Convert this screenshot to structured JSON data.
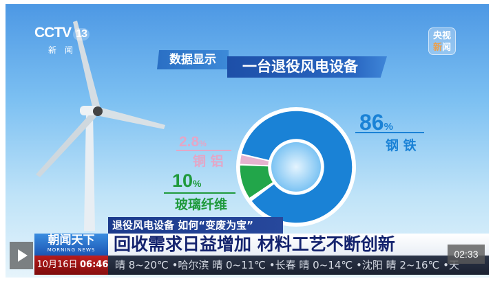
{
  "logo": {
    "channel": "CCTV",
    "number": "13",
    "subtitle": "新闻"
  },
  "watermark": {
    "line1": "央视",
    "line2_a": "新",
    "line2_b": "闻"
  },
  "header": {
    "tag": "数据显示",
    "title": "一台退役风电设备"
  },
  "colors": {
    "steel": "#1a82d6",
    "glass": "#22a64a",
    "copper": "#e6b3cf",
    "navy": "#14236e"
  },
  "chart_data": {
    "type": "pie",
    "donut": true,
    "title": "一台退役风电设备",
    "slices": [
      {
        "label": "钢 铁",
        "value": 86,
        "display": "86",
        "unit": "%",
        "color": "#1a82d6"
      },
      {
        "label": "玻璃纤维",
        "value": 10,
        "display": "10",
        "unit": "%",
        "color": "#22a64a"
      },
      {
        "label": "铜 铝",
        "value": 2.8,
        "display": "2.8",
        "unit": "%",
        "color": "#e6b3cf"
      }
    ]
  },
  "lower_third": {
    "subtitle": "退役风电设备 如何“变废为宝”",
    "headline": "回收需求日益增加 材料工艺不断创新",
    "program": "朝闻天下",
    "program_en": "MORNING NEWS",
    "date": "10月16日",
    "time": "06:46",
    "ticker": "晴 8~20℃ •哈尔滨 晴 0~11℃ •长春 晴 0~14℃ •沈阳 晴 2~16℃ •天"
  },
  "player": {
    "duration": "02:33",
    "play_icon": "play-icon"
  }
}
